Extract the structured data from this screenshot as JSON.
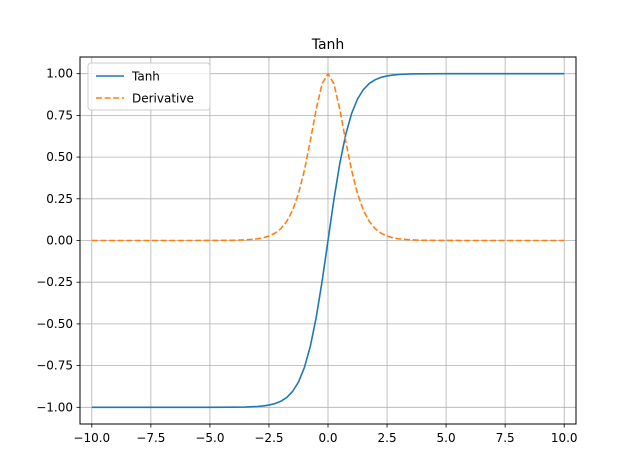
{
  "chart_data": {
    "type": "line",
    "title": "Tanh",
    "xlabel": "",
    "ylabel": "",
    "xlim": [
      -10.5,
      10.5
    ],
    "ylim": [
      -1.1,
      1.1
    ],
    "grid": true,
    "legend_position": "top-left",
    "xticks": [
      -10,
      -7.5,
      -5,
      -2.5,
      0,
      2.5,
      5,
      7.5,
      10
    ],
    "xtick_labels": [
      "−10.0",
      "−7.5",
      "−5.0",
      "−2.5",
      "0.0",
      "2.5",
      "5.0",
      "7.5",
      "10.0"
    ],
    "yticks": [
      -1,
      -0.75,
      -0.5,
      -0.25,
      0,
      0.25,
      0.5,
      0.75,
      1
    ],
    "ytick_labels": [
      "−1.00",
      "−0.75",
      "−0.50",
      "−0.25",
      "0.00",
      "0.25",
      "0.50",
      "0.75",
      "1.00"
    ],
    "x": [
      -10,
      -9,
      -8,
      -7,
      -6,
      -5,
      -4,
      -3.5,
      -3,
      -2.75,
      -2.5,
      -2.25,
      -2,
      -1.75,
      -1.5,
      -1.25,
      -1,
      -0.75,
      -0.5,
      -0.25,
      0,
      0.25,
      0.5,
      0.75,
      1,
      1.25,
      1.5,
      1.75,
      2,
      2.25,
      2.5,
      2.75,
      3,
      3.5,
      4,
      5,
      6,
      7,
      8,
      9,
      10
    ],
    "series": [
      {
        "name": "Tanh",
        "color": "#1f77b4",
        "style": "solid",
        "values": [
          -1,
          -1,
          -1,
          -1,
          -1,
          -0.9999,
          -0.9993,
          -0.9982,
          -0.9951,
          -0.9919,
          -0.9866,
          -0.978,
          -0.964,
          -0.9414,
          -0.9051,
          -0.8483,
          -0.7616,
          -0.6351,
          -0.4621,
          -0.2449,
          0,
          0.2449,
          0.4621,
          0.6351,
          0.7616,
          0.8483,
          0.9051,
          0.9414,
          0.964,
          0.978,
          0.9866,
          0.9919,
          0.9951,
          0.9982,
          0.9993,
          0.9999,
          1,
          1,
          1,
          1,
          1
        ]
      },
      {
        "name": "Derivative",
        "color": "#ff7f0e",
        "style": "dashed",
        "values": [
          0,
          0,
          0,
          0,
          0,
          0.0002,
          0.0013,
          0.0036,
          0.0099,
          0.0162,
          0.0266,
          0.0435,
          0.0707,
          0.1138,
          0.1807,
          0.2805,
          0.42,
          0.5966,
          0.7864,
          0.94,
          1,
          0.94,
          0.7864,
          0.5966,
          0.42,
          0.2805,
          0.1807,
          0.1138,
          0.0707,
          0.0435,
          0.0266,
          0.0162,
          0.0099,
          0.0036,
          0.0013,
          0.0002,
          0,
          0,
          0,
          0,
          0
        ]
      }
    ]
  }
}
